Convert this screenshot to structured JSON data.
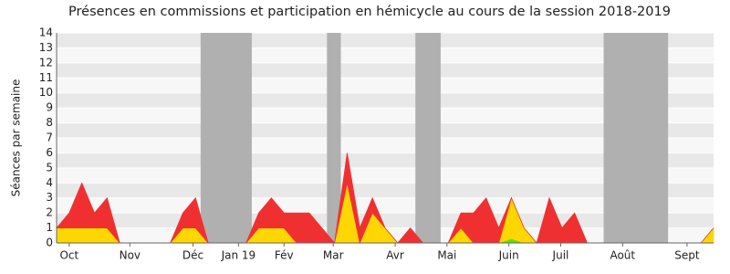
{
  "chart_data": {
    "type": "stacked_area",
    "title": "Présences en commissions et participation en hémicycle au cours de la session 2018-2019",
    "y_label": "Séances par semaine",
    "x": [
      0,
      1,
      2,
      3,
      4,
      5,
      6,
      7,
      8,
      9,
      10,
      11,
      12,
      13,
      14,
      15,
      16,
      17,
      18,
      19,
      20,
      21,
      22,
      23,
      24,
      25,
      26,
      27,
      28,
      29,
      30,
      31,
      32,
      33,
      34,
      35,
      36,
      37,
      38,
      39,
      40,
      41,
      42,
      43,
      44,
      45,
      46,
      47,
      48,
      49,
      50,
      51,
      52
    ],
    "xlim": [
      0,
      52
    ],
    "xticks": [
      {
        "value": 1.0,
        "label": "Oct"
      },
      {
        "value": 5.8,
        "label": "Nov"
      },
      {
        "value": 10.8,
        "label": "Déc"
      },
      {
        "value": 14.4,
        "label": "Jan 19"
      },
      {
        "value": 18.0,
        "label": "Fév"
      },
      {
        "value": 21.9,
        "label": "Mar"
      },
      {
        "value": 26.8,
        "label": "Avr"
      },
      {
        "value": 30.9,
        "label": "Mai"
      },
      {
        "value": 35.8,
        "label": "Juin"
      },
      {
        "value": 39.9,
        "label": "Juil"
      },
      {
        "value": 44.8,
        "label": "Août"
      },
      {
        "value": 49.9,
        "label": "Sept"
      }
    ],
    "ylim": [
      0,
      14
    ],
    "yticks": [
      0,
      1,
      2,
      3,
      4,
      5,
      6,
      7,
      8,
      9,
      10,
      11,
      12,
      13,
      14
    ],
    "vacations": [
      [
        11.4,
        15.45
      ],
      [
        21.4,
        22.5
      ],
      [
        28.4,
        30.4
      ],
      [
        43.3,
        48.4
      ]
    ],
    "vacation_color": "#b0b0b0",
    "series": [
      {
        "color": "#66dd00",
        "values": [
          0,
          0,
          0,
          0,
          0,
          0,
          0,
          0,
          0,
          0,
          0,
          0,
          0,
          0,
          0,
          0,
          0,
          0,
          0,
          0,
          0,
          0,
          0,
          0,
          0,
          0,
          0,
          0,
          0,
          0,
          0,
          0,
          0,
          0,
          0,
          0,
          0.3,
          0,
          0,
          0,
          0,
          0,
          0,
          0,
          0,
          0,
          0,
          0,
          0,
          0,
          0,
          0,
          0
        ]
      },
      {
        "color": "#ffd700",
        "values": [
          1,
          1,
          1,
          1,
          1,
          0,
          0,
          0,
          0,
          0,
          1,
          1,
          0,
          0,
          0,
          0,
          1,
          1,
          1,
          0,
          0,
          0,
          0,
          4,
          0,
          2,
          1,
          0,
          0,
          0,
          0,
          0,
          1,
          0,
          0,
          0,
          2.7,
          1,
          0,
          0,
          0,
          0,
          0,
          0,
          0,
          0,
          0,
          0,
          0,
          0,
          0,
          0,
          1
        ]
      },
      {
        "color": "#f03030",
        "values": [
          0,
          1,
          3,
          1,
          2,
          0,
          0,
          0,
          0,
          0,
          1,
          2,
          0,
          0,
          0,
          0,
          1,
          2,
          1,
          2,
          2,
          1,
          0,
          2,
          1,
          1,
          0,
          0,
          1,
          0,
          0,
          0,
          1,
          2,
          3,
          1,
          0,
          0,
          0,
          3,
          1,
          2,
          0,
          0,
          0,
          0,
          0,
          0,
          0,
          0,
          0,
          0,
          0
        ]
      }
    ]
  }
}
